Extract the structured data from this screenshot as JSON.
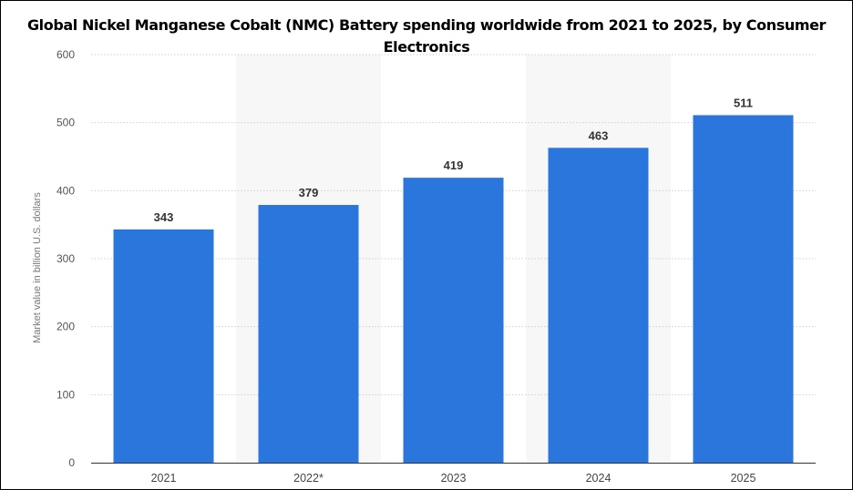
{
  "chart_data": {
    "type": "bar",
    "title": "Global Nickel Manganese Cobalt (NMC) Battery spending worldwide from 2021 to 2025, by Consumer Electronics",
    "xlabel": "",
    "ylabel": "Market value in billion U.S. dollars",
    "categories": [
      "2021",
      "2022*",
      "2023",
      "2024",
      "2025"
    ],
    "values": [
      343,
      379,
      419,
      463,
      511
    ],
    "ylim": [
      0,
      600
    ],
    "yticks": [
      0,
      100,
      200,
      300,
      400,
      500,
      600
    ],
    "grid": true,
    "bar_color": "#2a76dd",
    "grid_color": "#d0d0d0"
  }
}
